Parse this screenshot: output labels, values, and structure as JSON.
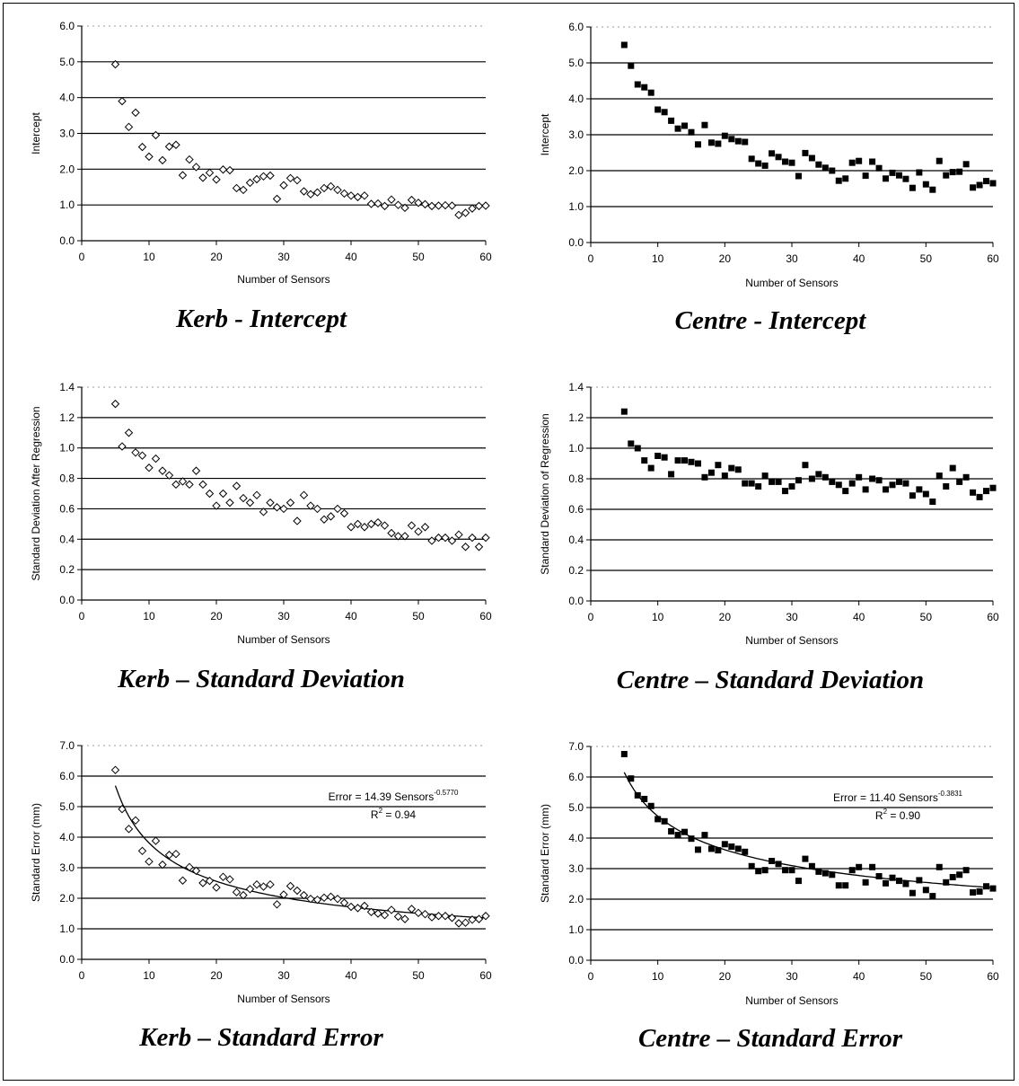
{
  "chart_data": [
    {
      "type": "scatter",
      "caption": "Kerb - Intercept",
      "xlabel": "Number of Sensors",
      "ylabel": "Intercept",
      "xlim": [
        0,
        60
      ],
      "ylim": [
        0,
        6
      ],
      "xticks": [
        0,
        10,
        20,
        30,
        40,
        50,
        60
      ],
      "yticks": [
        "0.0",
        "1.0",
        "2.0",
        "3.0",
        "4.0",
        "5.0",
        "6.0"
      ],
      "grid": "horizontal",
      "marker": "diamond-open",
      "series": [
        {
          "x": [
            5,
            6,
            7,
            8,
            9,
            10,
            11,
            12,
            13,
            14,
            15,
            16,
            17,
            18,
            19,
            20,
            21,
            22,
            23,
            24,
            25,
            26,
            27,
            28,
            29,
            30,
            31,
            32,
            33,
            34,
            35,
            36,
            37,
            38,
            39,
            40,
            41,
            42,
            43,
            44,
            45,
            46,
            47,
            48,
            49,
            50,
            51,
            52,
            53,
            54,
            55,
            56,
            57,
            58,
            59,
            60
          ],
          "y": [
            4.93,
            3.9,
            3.18,
            3.58,
            2.62,
            2.35,
            2.95,
            2.25,
            2.63,
            2.68,
            1.83,
            2.27,
            2.06,
            1.76,
            1.9,
            1.71,
            1.99,
            1.97,
            1.47,
            1.42,
            1.62,
            1.72,
            1.8,
            1.82,
            1.17,
            1.55,
            1.75,
            1.69,
            1.38,
            1.3,
            1.35,
            1.47,
            1.52,
            1.42,
            1.32,
            1.26,
            1.22,
            1.26,
            1.03,
            1.04,
            0.97,
            1.15,
            1.0,
            0.92,
            1.14,
            1.06,
            1.02,
            0.97,
            0.98,
            0.99,
            0.98,
            0.72,
            0.78,
            0.9,
            0.97,
            0.98
          ]
        }
      ]
    },
    {
      "type": "scatter",
      "caption": "Centre - Intercept",
      "xlabel": "Number of Sensors",
      "ylabel": "Intercept",
      "xlim": [
        0,
        60
      ],
      "ylim": [
        0,
        6
      ],
      "xticks": [
        0,
        10,
        20,
        30,
        40,
        50,
        60
      ],
      "yticks": [
        "0.0",
        "1.0",
        "2.0",
        "3.0",
        "4.0",
        "5.0",
        "6.0"
      ],
      "grid": "horizontal",
      "marker": "square-filled",
      "series": [
        {
          "x": [
            5,
            6,
            7,
            8,
            9,
            10,
            11,
            12,
            13,
            14,
            15,
            16,
            17,
            18,
            19,
            20,
            21,
            22,
            23,
            24,
            25,
            26,
            27,
            28,
            29,
            30,
            31,
            32,
            33,
            34,
            35,
            36,
            37,
            38,
            39,
            40,
            41,
            42,
            43,
            44,
            45,
            46,
            47,
            48,
            49,
            50,
            51,
            52,
            53,
            54,
            55,
            56,
            57,
            58,
            59,
            60
          ],
          "y": [
            5.5,
            4.92,
            4.4,
            4.32,
            4.17,
            3.7,
            3.63,
            3.39,
            3.17,
            3.25,
            3.07,
            2.73,
            3.27,
            2.78,
            2.75,
            2.97,
            2.88,
            2.82,
            2.8,
            2.33,
            2.2,
            2.14,
            2.48,
            2.38,
            2.25,
            2.22,
            1.85,
            2.49,
            2.35,
            2.17,
            2.08,
            2.0,
            1.72,
            1.78,
            2.22,
            2.27,
            1.86,
            2.25,
            2.07,
            1.78,
            1.94,
            1.87,
            1.77,
            1.52,
            1.95,
            1.62,
            1.47,
            2.27,
            1.87,
            1.96,
            1.97,
            2.18,
            1.53,
            1.6,
            1.71,
            1.65
          ]
        }
      ]
    },
    {
      "type": "scatter",
      "caption": "Kerb – Standard Deviation",
      "xlabel": "Number of Sensors",
      "ylabel": "Standard Deviation After Regression",
      "xlim": [
        0,
        60
      ],
      "ylim": [
        0,
        1.4
      ],
      "xticks": [
        0,
        10,
        20,
        30,
        40,
        50,
        60
      ],
      "yticks": [
        "0.0",
        "0.2",
        "0.4",
        "0.6",
        "0.8",
        "1.0",
        "1.2",
        "1.4"
      ],
      "grid": "horizontal",
      "marker": "diamond-open",
      "series": [
        {
          "x": [
            5,
            6,
            7,
            8,
            9,
            10,
            11,
            12,
            13,
            14,
            15,
            16,
            17,
            18,
            19,
            20,
            21,
            22,
            23,
            24,
            25,
            26,
            27,
            28,
            29,
            30,
            31,
            32,
            33,
            34,
            35,
            36,
            37,
            38,
            39,
            40,
            41,
            42,
            43,
            44,
            45,
            46,
            47,
            48,
            49,
            50,
            51,
            52,
            53,
            54,
            55,
            56,
            57,
            58,
            59,
            60
          ],
          "y": [
            1.29,
            1.01,
            1.1,
            0.97,
            0.95,
            0.87,
            0.93,
            0.85,
            0.82,
            0.76,
            0.78,
            0.76,
            0.85,
            0.76,
            0.7,
            0.62,
            0.7,
            0.64,
            0.75,
            0.67,
            0.64,
            0.69,
            0.58,
            0.64,
            0.61,
            0.6,
            0.64,
            0.52,
            0.69,
            0.62,
            0.6,
            0.53,
            0.55,
            0.6,
            0.57,
            0.48,
            0.5,
            0.48,
            0.5,
            0.51,
            0.49,
            0.44,
            0.42,
            0.42,
            0.49,
            0.45,
            0.48,
            0.39,
            0.41,
            0.41,
            0.39,
            0.43,
            0.35,
            0.41,
            0.35,
            0.41
          ]
        }
      ]
    },
    {
      "type": "scatter",
      "caption": "Centre – Standard Deviation",
      "xlabel": "Number of Sensors",
      "ylabel": "Standard Deviation of Regression",
      "xlim": [
        0,
        60
      ],
      "ylim": [
        0,
        1.4
      ],
      "xticks": [
        0,
        10,
        20,
        30,
        40,
        50,
        60
      ],
      "yticks": [
        "0.0",
        "0.2",
        "0.4",
        "0.6",
        "0.8",
        "1.0",
        "1.2",
        "1.4"
      ],
      "grid": "horizontal",
      "marker": "square-filled",
      "series": [
        {
          "x": [
            5,
            6,
            7,
            8,
            9,
            10,
            11,
            12,
            13,
            14,
            15,
            16,
            17,
            18,
            19,
            20,
            21,
            22,
            23,
            24,
            25,
            26,
            27,
            28,
            29,
            30,
            31,
            32,
            33,
            34,
            35,
            36,
            37,
            38,
            39,
            40,
            41,
            42,
            43,
            44,
            45,
            46,
            47,
            48,
            49,
            50,
            51,
            52,
            53,
            54,
            55,
            56,
            57,
            58,
            59,
            60
          ],
          "y": [
            1.24,
            1.03,
            1.0,
            0.92,
            0.87,
            0.95,
            0.94,
            0.83,
            0.92,
            0.92,
            0.91,
            0.9,
            0.81,
            0.84,
            0.89,
            0.82,
            0.87,
            0.86,
            0.77,
            0.77,
            0.75,
            0.82,
            0.78,
            0.78,
            0.72,
            0.75,
            0.79,
            0.89,
            0.8,
            0.83,
            0.81,
            0.78,
            0.76,
            0.72,
            0.77,
            0.81,
            0.73,
            0.8,
            0.79,
            0.73,
            0.76,
            0.78,
            0.77,
            0.69,
            0.73,
            0.7,
            0.65,
            0.82,
            0.75,
            0.87,
            0.78,
            0.81,
            0.71,
            0.68,
            0.72,
            0.74
          ]
        }
      ]
    },
    {
      "type": "scatter",
      "caption": "Kerb – Standard Error",
      "xlabel": "Number of Sensors",
      "ylabel": "Standard Error (mm)",
      "xlim": [
        0,
        60
      ],
      "ylim": [
        0,
        7
      ],
      "xticks": [
        0,
        10,
        20,
        30,
        40,
        50,
        60
      ],
      "yticks": [
        "0.0",
        "1.0",
        "2.0",
        "3.0",
        "4.0",
        "5.0",
        "6.0",
        "7.0"
      ],
      "grid": "horizontal",
      "marker": "diamond-open",
      "trendline": {
        "coef": 14.39,
        "exp": -0.577,
        "from": 5,
        "to": 60
      },
      "annotation": {
        "eq": "Error = 14.39 Sensors",
        "sup": "-0.5770",
        "r2_pre": "R",
        "r2_sup": "2",
        "r2_post": " = 0.94"
      },
      "series": [
        {
          "x": [
            5,
            6,
            7,
            8,
            9,
            10,
            11,
            12,
            13,
            14,
            15,
            16,
            17,
            18,
            19,
            20,
            21,
            22,
            23,
            24,
            25,
            26,
            27,
            28,
            29,
            30,
            31,
            32,
            33,
            34,
            35,
            36,
            37,
            38,
            39,
            40,
            41,
            42,
            43,
            44,
            45,
            46,
            47,
            48,
            49,
            50,
            51,
            52,
            53,
            54,
            55,
            56,
            57,
            58,
            59,
            60
          ],
          "y": [
            6.2,
            4.92,
            4.27,
            4.55,
            3.55,
            3.2,
            3.88,
            3.1,
            3.42,
            3.45,
            2.58,
            3.02,
            2.9,
            2.5,
            2.57,
            2.35,
            2.7,
            2.62,
            2.2,
            2.1,
            2.3,
            2.45,
            2.38,
            2.45,
            1.8,
            2.12,
            2.4,
            2.25,
            2.1,
            1.98,
            1.95,
            2.02,
            2.05,
            1.98,
            1.85,
            1.72,
            1.68,
            1.75,
            1.55,
            1.5,
            1.45,
            1.62,
            1.4,
            1.32,
            1.65,
            1.52,
            1.48,
            1.38,
            1.42,
            1.42,
            1.36,
            1.18,
            1.2,
            1.3,
            1.32,
            1.42
          ]
        }
      ]
    },
    {
      "type": "scatter",
      "caption": "Centre – Standard Error",
      "xlabel": "Number of Sensors",
      "ylabel": "Standard Error (mm)",
      "xlim": [
        0,
        60
      ],
      "ylim": [
        0,
        7
      ],
      "xticks": [
        0,
        10,
        20,
        30,
        40,
        50,
        60
      ],
      "yticks": [
        "0.0",
        "1.0",
        "2.0",
        "3.0",
        "4.0",
        "5.0",
        "6.0",
        "7.0"
      ],
      "grid": "horizontal",
      "marker": "square-filled",
      "trendline": {
        "coef": 11.4,
        "exp": -0.3831,
        "from": 5,
        "to": 60
      },
      "annotation": {
        "eq": "Error = 11.40 Sensors",
        "sup": "-0.3831",
        "r2_pre": "R",
        "r2_sup": "2",
        "r2_post": " = 0.90"
      },
      "series": [
        {
          "x": [
            5,
            6,
            7,
            8,
            9,
            10,
            11,
            12,
            13,
            14,
            15,
            16,
            17,
            18,
            19,
            20,
            21,
            22,
            23,
            24,
            25,
            26,
            27,
            28,
            29,
            30,
            31,
            32,
            33,
            34,
            35,
            36,
            37,
            38,
            39,
            40,
            41,
            42,
            43,
            44,
            45,
            46,
            47,
            48,
            49,
            50,
            51,
            52,
            53,
            54,
            55,
            56,
            57,
            58,
            59,
            60
          ],
          "y": [
            6.75,
            5.95,
            5.4,
            5.28,
            5.05,
            4.62,
            4.55,
            4.22,
            4.1,
            4.2,
            3.98,
            3.62,
            4.1,
            3.65,
            3.6,
            3.8,
            3.72,
            3.65,
            3.55,
            3.08,
            2.92,
            2.95,
            3.25,
            3.15,
            2.95,
            2.95,
            2.6,
            3.32,
            3.08,
            2.9,
            2.85,
            2.8,
            2.45,
            2.45,
            2.95,
            3.05,
            2.55,
            3.05,
            2.75,
            2.52,
            2.7,
            2.6,
            2.5,
            2.2,
            2.62,
            2.3,
            2.1,
            3.05,
            2.55,
            2.72,
            2.8,
            2.95,
            2.22,
            2.25,
            2.42,
            2.35
          ]
        }
      ]
    }
  ]
}
